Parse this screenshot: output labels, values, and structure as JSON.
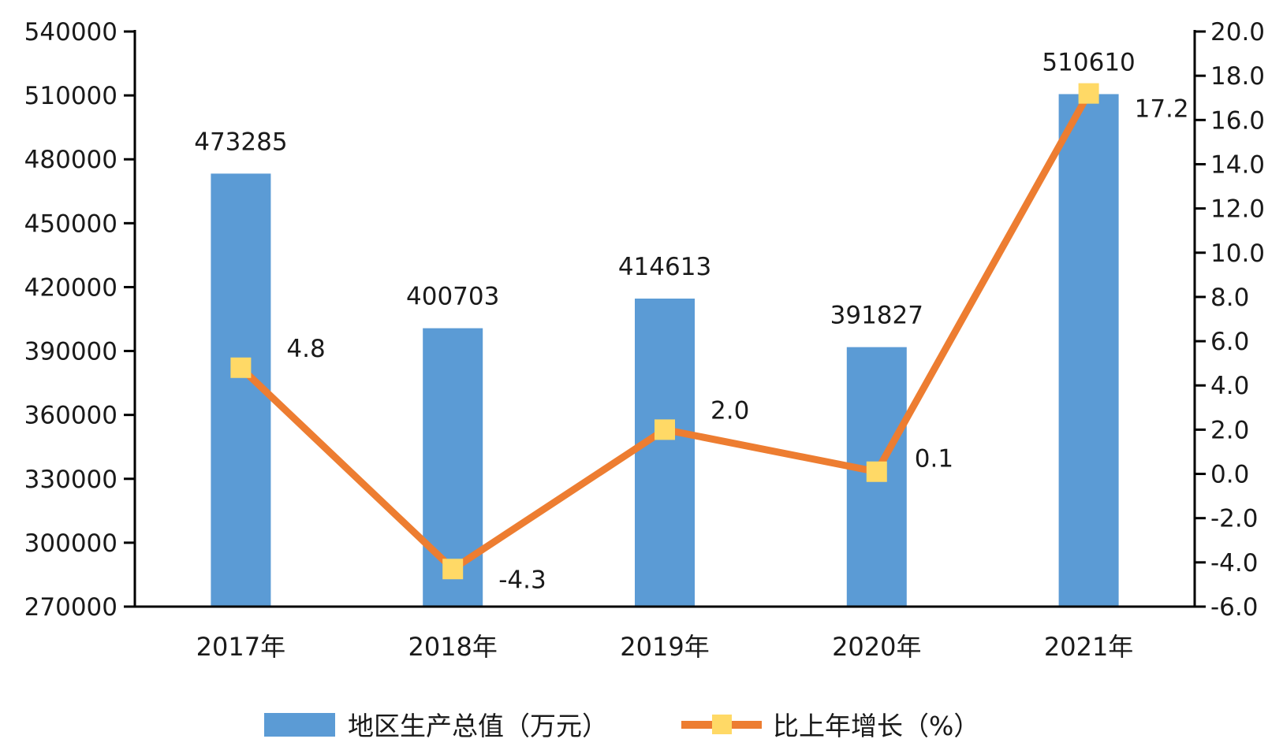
{
  "chart_data": {
    "type": "bar",
    "categories": [
      "2017年",
      "2018年",
      "2019年",
      "2020年",
      "2021年"
    ],
    "series": [
      {
        "name": "地区生产总值（万元）",
        "type": "bar",
        "axis": "left",
        "color": "#5b9bd5",
        "values": [
          473285,
          400703,
          414613,
          391827,
          510610
        ],
        "labels": [
          "473285",
          "400703",
          "414613",
          "391827",
          "510610"
        ]
      },
      {
        "name": "比上年增长（%）",
        "type": "line",
        "axis": "right",
        "color": "#ed7d31",
        "marker_color": "#ffd966",
        "values": [
          4.8,
          -4.3,
          2.0,
          0.1,
          17.2
        ],
        "labels": [
          "4.8",
          "-4.3",
          "2.0",
          "0.1",
          "17.2"
        ]
      }
    ],
    "y_left": {
      "min": 270000,
      "max": 540000,
      "ticks": [
        "540000",
        "510000",
        "480000",
        "450000",
        "420000",
        "390000",
        "360000",
        "330000",
        "300000",
        "270000"
      ]
    },
    "y_right": {
      "min": -6.0,
      "max": 20.0,
      "ticks": [
        "20.0",
        "18.0",
        "16.0",
        "14.0",
        "12.0",
        "10.0",
        "8.0",
        "6.0",
        "4.0",
        "2.0",
        "0.0",
        "-2.0",
        "-4.0",
        "-6.0"
      ]
    },
    "legend": "bottom",
    "grid": false
  }
}
